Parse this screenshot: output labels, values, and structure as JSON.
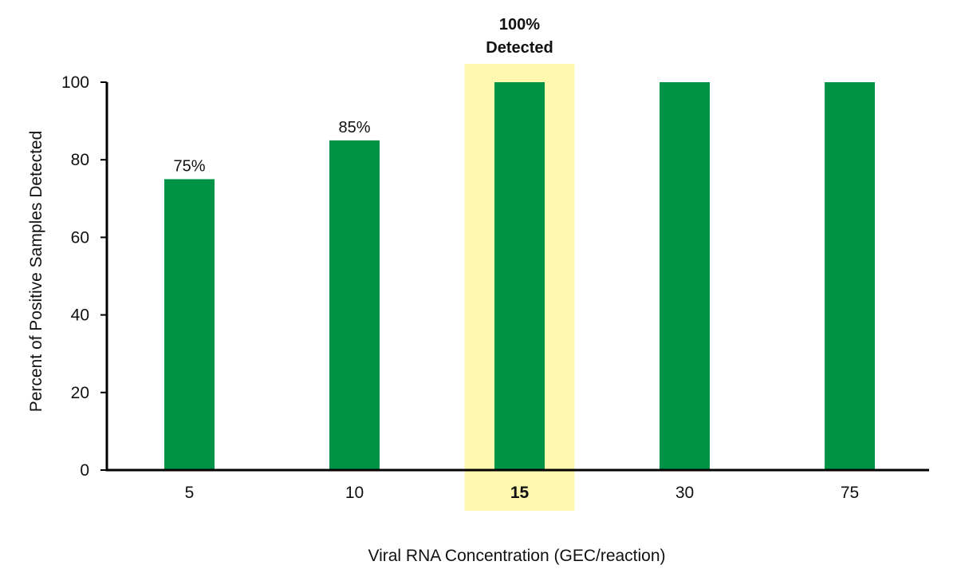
{
  "chart_data": {
    "type": "bar",
    "categories": [
      "5",
      "10",
      "15",
      "30",
      "75"
    ],
    "values": [
      75,
      85,
      100,
      100,
      100
    ],
    "data_labels": [
      "75%",
      "85%",
      "",
      "",
      ""
    ],
    "highlight_index": 2,
    "highlight_label": [
      "100%",
      "Detected"
    ],
    "title": "",
    "xlabel": "Viral RNA Concentration (GEC/reaction)",
    "ylabel": "Percent of Positive Samples Detected",
    "ylim": [
      0,
      100
    ],
    "yticks": [
      0,
      20,
      40,
      60,
      80,
      100
    ],
    "grid": false,
    "bar_color": "#009245",
    "highlight_color": "#FFF9B0",
    "axis_color": "#000000"
  }
}
